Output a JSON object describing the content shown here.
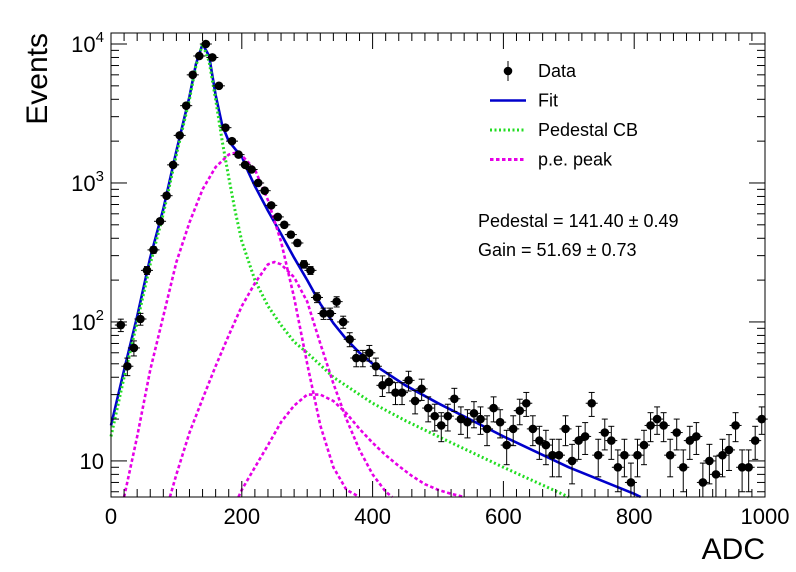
{
  "chart_data": {
    "type": "scatter",
    "xlabel": "ADC",
    "ylabel": "Events",
    "xlim": [
      0,
      1000
    ],
    "ylim": [
      5.5,
      12000
    ],
    "y_scale": "log",
    "grid": false,
    "legend_position": "top-right",
    "x_ticks": [
      "0",
      "200",
      "400",
      "600",
      "800",
      "1000"
    ],
    "y_ticks": [
      {
        "value": 10,
        "base": "10",
        "exp": ""
      },
      {
        "value": 100,
        "base": "10",
        "exp": "2"
      },
      {
        "value": 1000,
        "base": "10",
        "exp": "3"
      },
      {
        "value": 10000,
        "base": "10",
        "exp": "4"
      }
    ],
    "legend": [
      {
        "label": "Data",
        "style": "marker",
        "color": "#000000"
      },
      {
        "label": "Fit",
        "style": "solid",
        "color": "#0000cc"
      },
      {
        "label": "Pedestal CB",
        "style": "dotted",
        "color": "#22dd22"
      },
      {
        "label": "p.e. peak",
        "style": "dashed",
        "color": "#e600e6"
      }
    ],
    "annotations": {
      "pedestal": "Pedestal = 141.40 ± 0.49",
      "gain": "Gain = 51.69 ± 0.73"
    },
    "series": [
      {
        "name": "Data",
        "color": "#000000",
        "x": [
          15,
          25,
          35,
          45,
          55,
          65,
          75,
          85,
          95,
          105,
          115,
          125,
          135,
          145,
          155,
          165,
          175,
          185,
          195,
          205,
          215,
          225,
          235,
          245,
          255,
          265,
          275,
          285,
          295,
          305,
          315,
          325,
          335,
          345,
          355,
          365,
          375,
          385,
          395,
          405,
          415,
          425,
          435,
          445,
          455,
          465,
          475,
          485,
          495,
          505,
          515,
          525,
          535,
          545,
          555,
          565,
          575,
          585,
          595,
          605,
          615,
          625,
          635,
          645,
          655,
          665,
          675,
          685,
          695,
          705,
          715,
          725,
          735,
          745,
          755,
          765,
          775,
          785,
          795,
          805,
          815,
          825,
          835,
          845,
          855,
          865,
          875,
          885,
          895,
          905,
          915,
          925,
          935,
          945,
          955,
          965,
          975,
          985,
          995
        ],
        "y": [
          95,
          48,
          65,
          105,
          235,
          330,
          530,
          810,
          1350,
          2200,
          3600,
          6000,
          8200,
          10000,
          8000,
          5000,
          2500,
          2000,
          1600,
          1350,
          1250,
          1000,
          880,
          690,
          570,
          500,
          425,
          370,
          260,
          235,
          150,
          115,
          115,
          140,
          100,
          75,
          55,
          55,
          60,
          48,
          35,
          37,
          31,
          31,
          38,
          27,
          33,
          24,
          21,
          18,
          21,
          28,
          20,
          19,
          22,
          20,
          17,
          24,
          19,
          13,
          17,
          23,
          26,
          17,
          14,
          13,
          11,
          11,
          17,
          10,
          14,
          15,
          26,
          11,
          16,
          14,
          9,
          11,
          7,
          11,
          13,
          18,
          20,
          18,
          11,
          16,
          9,
          14,
          15,
          7,
          10,
          8,
          11,
          12,
          18,
          9,
          9,
          14,
          20
        ]
      },
      {
        "name": "Fit",
        "color": "#0000cc",
        "x": [
          0,
          20,
          40,
          60,
          80,
          100,
          120,
          130,
          140,
          150,
          160,
          170,
          180,
          190,
          200,
          210,
          220,
          240,
          260,
          280,
          300,
          320,
          340,
          360,
          380,
          400,
          450,
          500,
          600,
          700,
          800,
          810
        ],
        "y": [
          18,
          45,
          110,
          290,
          650,
          1700,
          4200,
          7200,
          10000,
          8200,
          4300,
          2600,
          2000,
          1750,
          1550,
          1200,
          950,
          630,
          430,
          290,
          200,
          135,
          98,
          75,
          60,
          50,
          35,
          26,
          15,
          9,
          5.8,
          5.5
        ]
      },
      {
        "name": "Pedestal CB",
        "color": "#22dd22",
        "x": [
          0,
          20,
          40,
          60,
          80,
          100,
          120,
          130,
          140,
          150,
          160,
          170,
          180,
          190,
          200,
          220,
          240,
          260,
          280,
          300,
          320,
          340,
          380,
          400,
          450,
          500,
          600,
          700
        ],
        "y": [
          15,
          40,
          100,
          260,
          600,
          1600,
          4000,
          7000,
          10000,
          7500,
          4000,
          2000,
          1100,
          620,
          380,
          200,
          130,
          95,
          72,
          60,
          49,
          40,
          30,
          26,
          19.5,
          15,
          9,
          5.5
        ]
      },
      {
        "name": "p.e. peak 1",
        "color": "#e600e6",
        "x": [
          20,
          40,
          60,
          80,
          100,
          120,
          140,
          160,
          180,
          190,
          200,
          220,
          240,
          260,
          280,
          300,
          320,
          340,
          360,
          380
        ],
        "y": [
          5.5,
          15,
          45,
          110,
          270,
          520,
          900,
          1300,
          1600,
          1650,
          1580,
          1250,
          750,
          380,
          150,
          50,
          18,
          9,
          6.2,
          5.5
        ]
      },
      {
        "name": "p.e. peak 2",
        "color": "#e600e6",
        "x": [
          90,
          100,
          120,
          140,
          160,
          180,
          200,
          220,
          240,
          250,
          260,
          280,
          300,
          320,
          340,
          360,
          380,
          400,
          420,
          430
        ],
        "y": [
          5.5,
          8,
          16,
          28,
          48,
          80,
          130,
          190,
          260,
          270,
          260,
          210,
          140,
          70,
          36,
          20,
          12,
          8,
          6,
          5.5
        ]
      },
      {
        "name": "p.e. peak 3",
        "color": "#e600e6",
        "x": [
          195,
          200,
          220,
          240,
          260,
          280,
          300,
          320,
          340,
          360,
          380,
          400,
          420,
          440,
          460,
          480,
          500,
          520,
          540
        ],
        "y": [
          5.5,
          6.2,
          9,
          13,
          19,
          25,
          30,
          30,
          27,
          22,
          17,
          13.5,
          11,
          9.2,
          7.8,
          6.8,
          6.2,
          5.8,
          5.5
        ]
      }
    ]
  }
}
